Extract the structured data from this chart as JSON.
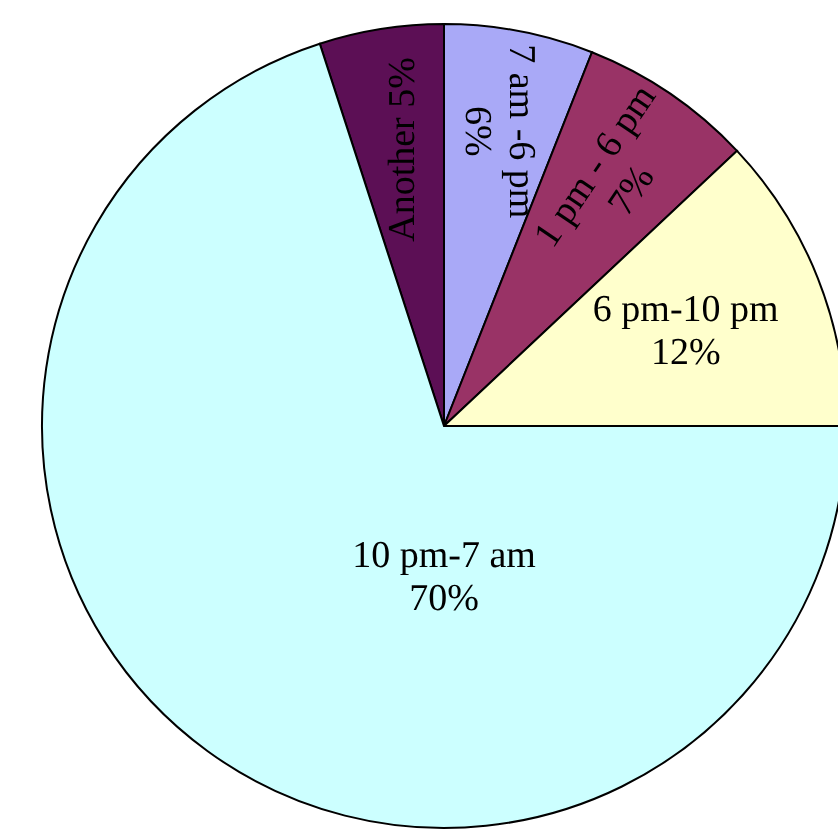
{
  "chart_data": {
    "type": "pie",
    "categories": [
      "Another",
      "7 am -6 pm",
      "1 pm - 6 pm",
      "6 pm-10 pm",
      "10 pm-7 am"
    ],
    "values": [
      5,
      6,
      7,
      12,
      70
    ],
    "value_labels": [
      "5%",
      "6%",
      "7%",
      "12%",
      "70%"
    ],
    "colors": [
      "#5c0f55",
      "#a9a9f7",
      "#993366",
      "#ffffcc",
      "#ccffff"
    ]
  }
}
